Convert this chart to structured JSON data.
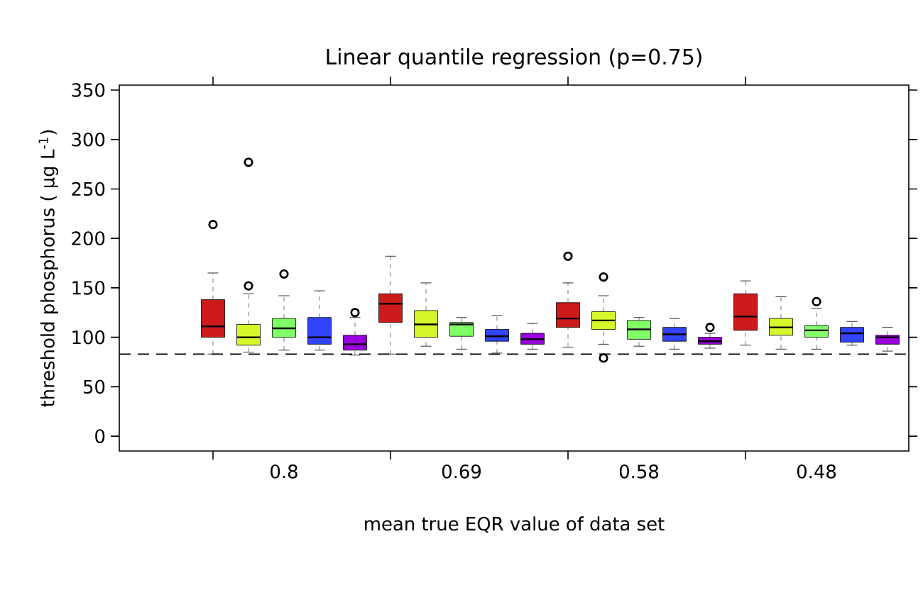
{
  "chart_data": {
    "type": "box",
    "title": "Linear quantile regression (p=0.75)",
    "xlabel": "mean true EQR value of data set",
    "ylabel": "threshold phosphorus ( µg L$^{-1}$)",
    "categories": [
      "0.8",
      "0.69",
      "0.58",
      "0.48"
    ],
    "ylim": [
      -15,
      355
    ],
    "yticks": [
      0,
      50,
      100,
      150,
      200,
      250,
      300,
      350
    ],
    "ref_lines": [
      {
        "axis": "y",
        "value": 83,
        "line_style": "dashed"
      }
    ],
    "series": [
      {
        "color": "#cc1a1a",
        "boxes": [
          {
            "low": 83,
            "q1": 100,
            "median": 111,
            "q3": 138,
            "high": 165,
            "outliers": [
              214
            ]
          },
          {
            "low": 83,
            "q1": 115,
            "median": 134,
            "q3": 144,
            "high": 182
          },
          {
            "low": 90,
            "q1": 110,
            "median": 119,
            "q3": 135,
            "high": 155,
            "outliers": [
              182
            ]
          },
          {
            "low": 92,
            "q1": 107,
            "median": 121,
            "q3": 144,
            "high": 157
          }
        ]
      },
      {
        "color": "#d6f72a",
        "boxes": [
          {
            "low": 85,
            "q1": 92,
            "median": 100,
            "q3": 113,
            "high": 144,
            "outliers": [
              277,
              152
            ]
          },
          {
            "low": 91,
            "q1": 100,
            "median": 113,
            "q3": 127,
            "high": 155
          },
          {
            "low": 93,
            "q1": 108,
            "median": 117,
            "q3": 126,
            "high": 142,
            "outliers": [
              161,
              79
            ]
          },
          {
            "low": 88,
            "q1": 102,
            "median": 110,
            "q3": 119,
            "high": 141
          }
        ]
      },
      {
        "color": "#80ff66",
        "boxes": [
          {
            "low": 87,
            "q1": 100,
            "median": 109,
            "q3": 119,
            "high": 142,
            "outliers": [
              164
            ]
          },
          {
            "low": 88,
            "q1": 101,
            "median": 113,
            "q3": 115,
            "high": 120
          },
          {
            "low": 91,
            "q1": 98,
            "median": 108,
            "q3": 117,
            "high": 120
          },
          {
            "low": 88,
            "q1": 100,
            "median": 107,
            "q3": 112,
            "high": 129,
            "outliers": [
              136
            ]
          }
        ]
      },
      {
        "color": "#3344ff",
        "boxes": [
          {
            "low": 87,
            "q1": 93,
            "median": 100,
            "q3": 120,
            "high": 147
          },
          {
            "low": 84,
            "q1": 96,
            "median": 101,
            "q3": 108,
            "high": 122
          },
          {
            "low": 88,
            "q1": 96,
            "median": 103,
            "q3": 110,
            "high": 119
          },
          {
            "low": 92,
            "q1": 95,
            "median": 104,
            "q3": 110,
            "high": 116
          }
        ]
      },
      {
        "color": "#9900dd",
        "boxes": [
          {
            "low": 82,
            "q1": 87,
            "median": 93,
            "q3": 102,
            "high": 120,
            "outliers": [
              125
            ]
          },
          {
            "low": 88,
            "q1": 93,
            "median": 98,
            "q3": 104,
            "high": 114
          },
          {
            "low": 89,
            "q1": 93,
            "median": 96,
            "q3": 100,
            "high": 104,
            "outliers": [
              110
            ]
          },
          {
            "low": 86,
            "q1": 93,
            "median": 100,
            "q3": 102,
            "high": 110
          }
        ]
      }
    ]
  }
}
